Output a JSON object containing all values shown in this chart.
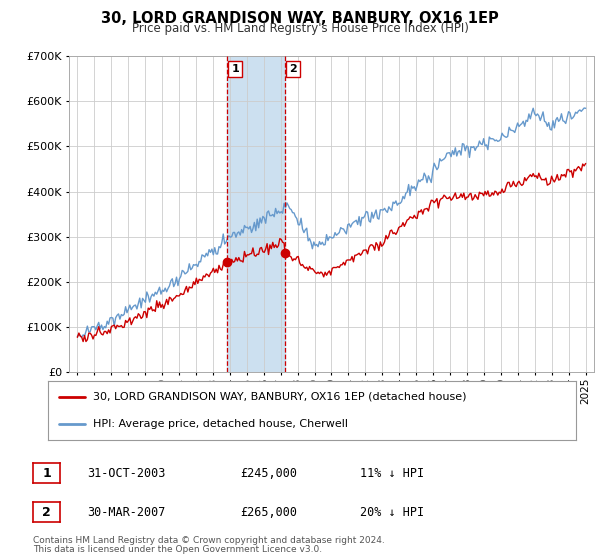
{
  "title": "30, LORD GRANDISON WAY, BANBURY, OX16 1EP",
  "subtitle": "Price paid vs. HM Land Registry's House Price Index (HPI)",
  "legend_label_red": "30, LORD GRANDISON WAY, BANBURY, OX16 1EP (detached house)",
  "legend_label_blue": "HPI: Average price, detached house, Cherwell",
  "footnote1": "Contains HM Land Registry data © Crown copyright and database right 2024.",
  "footnote2": "This data is licensed under the Open Government Licence v3.0.",
  "sale1_label": "1",
  "sale1_date": "31-OCT-2003",
  "sale1_price": "£245,000",
  "sale1_hpi": "11% ↓ HPI",
  "sale2_label": "2",
  "sale2_date": "30-MAR-2007",
  "sale2_price": "£265,000",
  "sale2_hpi": "20% ↓ HPI",
  "sale1_x": 2003.83,
  "sale1_y": 245000,
  "sale2_x": 2007.25,
  "sale2_y": 265000,
  "vline1_x": 2003.83,
  "vline2_x": 2007.25,
  "shade_x1": 2003.83,
  "shade_x2": 2007.25,
  "ylim": [
    0,
    700000
  ],
  "xlim_left": 1994.5,
  "xlim_right": 2025.5,
  "yticks": [
    0,
    100000,
    200000,
    300000,
    400000,
    500000,
    600000,
    700000
  ],
  "xticks": [
    1995,
    1996,
    1997,
    1998,
    1999,
    2000,
    2001,
    2002,
    2003,
    2004,
    2005,
    2006,
    2007,
    2008,
    2009,
    2010,
    2011,
    2012,
    2013,
    2014,
    2015,
    2016,
    2017,
    2018,
    2019,
    2020,
    2021,
    2022,
    2023,
    2024,
    2025
  ],
  "red_color": "#cc0000",
  "blue_color": "#6699cc",
  "shade_color": "#cce0f0",
  "grid_color": "#cccccc",
  "background_color": "#ffffff"
}
